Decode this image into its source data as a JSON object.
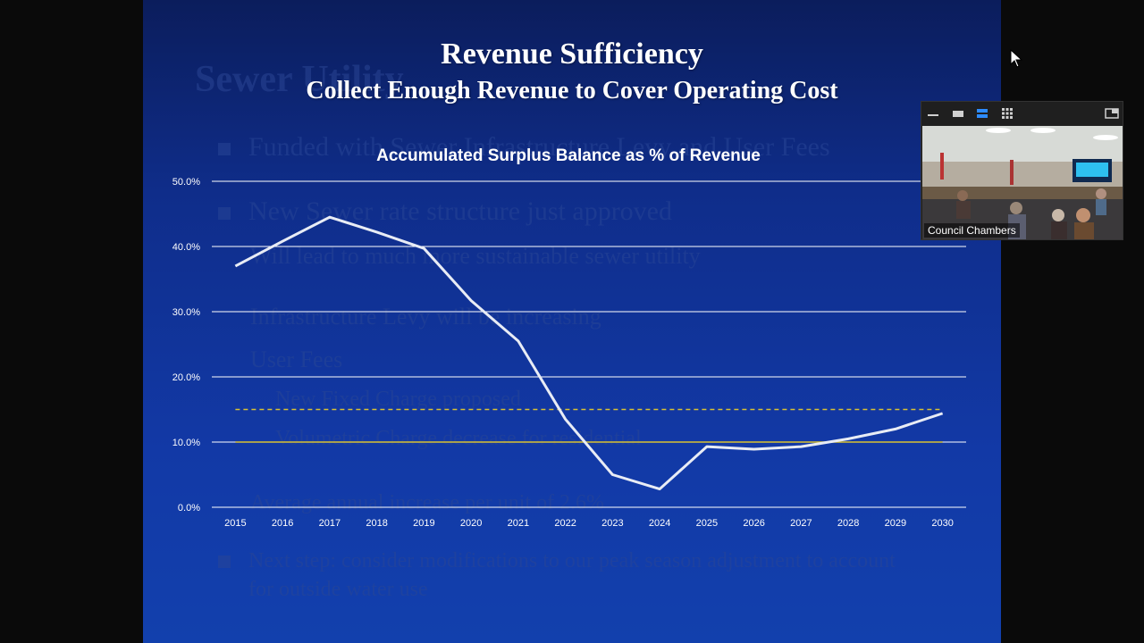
{
  "slide": {
    "title": "Revenue Sufficiency",
    "subtitle": "Collect Enough Revenue to Cover Operating Cost",
    "background_text": {
      "heading": "Sewer Utility",
      "b1": "Funded with Sewer Infrastructure Levy and User Fees",
      "b2": "New Sewer rate structure just approved",
      "b3": "Will lead to much more sustainable sewer utility",
      "b4": "Infrastructure Levy will be increasing",
      "b5": "User Fees",
      "b6": "New Fixed Charge proposed",
      "b7": "Volumetric Charge decrease for residential",
      "b8": "Average annual increase per unit of 2.6%",
      "b9a": "Next step: consider modifications to our peak season adjustment to account",
      "b9b": "for outside water use"
    }
  },
  "chart_data": {
    "type": "line",
    "title": "Accumulated Surplus Balance as % of Revenue",
    "categories": [
      "2015",
      "2016",
      "2017",
      "2018",
      "2019",
      "2020",
      "2021",
      "2022",
      "2023",
      "2024",
      "2025",
      "2026",
      "2027",
      "2028",
      "2029",
      "2030"
    ],
    "series": [
      {
        "values": [
          37.0,
          40.8,
          44.5,
          42.2,
          39.7,
          31.7,
          25.5,
          13.5,
          5.0,
          2.8,
          9.3,
          8.9,
          9.3,
          10.5,
          12.0,
          14.4
        ],
        "color": "#e8ecf5",
        "style": "solid"
      },
      {
        "values": [
          15,
          15,
          15,
          15,
          15,
          15,
          15,
          15,
          15,
          15,
          15,
          15,
          15,
          15,
          15,
          15
        ],
        "color": "#d9c232",
        "style": "dashed"
      },
      {
        "values": [
          10,
          10,
          10,
          10,
          10,
          10,
          10,
          10,
          10,
          10,
          10,
          10,
          10,
          10,
          10,
          10
        ],
        "color": "#d9c232",
        "style": "solid"
      }
    ],
    "y_ticks": [
      "0.0%",
      "10.0%",
      "20.0%",
      "30.0%",
      "40.0%",
      "50.0%"
    ],
    "ylim": [
      0,
      50
    ],
    "xlabel": "",
    "ylabel": "",
    "grid": true,
    "gridline_color": "#ffffff"
  },
  "zoom": {
    "participant_label": "Council Chambers",
    "toolbar_icons": [
      "minimize-icon",
      "hide-video-icon",
      "speaker-view-icon",
      "gallery-view-icon",
      "exit-fullscreen-icon"
    ],
    "accent": "#2d8cff"
  }
}
